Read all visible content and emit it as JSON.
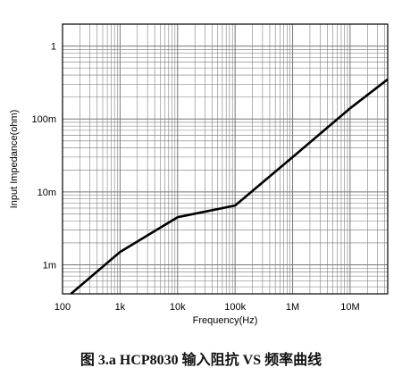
{
  "caption": "图 3.a HCP8030 输入阻抗 VS 频率曲线",
  "chart_data": {
    "type": "line",
    "title": "",
    "xlabel": "Frequency(Hz)",
    "ylabel": "Input Impedance(ohm)",
    "xscale": "log",
    "yscale": "log",
    "xlim": [
      100,
      45000000
    ],
    "ylim": [
      0.0004,
      2
    ],
    "xticks": [
      {
        "value": 100,
        "label": "100"
      },
      {
        "value": 1000,
        "label": "1k"
      },
      {
        "value": 10000,
        "label": "10k"
      },
      {
        "value": 100000,
        "label": "100k"
      },
      {
        "value": 1000000,
        "label": "1M"
      },
      {
        "value": 10000000,
        "label": "10M"
      }
    ],
    "yticks": [
      {
        "value": 0.001,
        "label": "1m"
      },
      {
        "value": 0.01,
        "label": "10m"
      },
      {
        "value": 0.1,
        "label": "100m"
      },
      {
        "value": 1,
        "label": "1"
      }
    ],
    "grid": true,
    "series": [
      {
        "x": [
          140,
          1000,
          10000,
          100000,
          1000000,
          10000000,
          45000000
        ],
        "y": [
          0.0004,
          0.0015,
          0.0045,
          0.0065,
          0.03,
          0.14,
          0.35
        ]
      }
    ],
    "colors": {
      "line": "#000000",
      "grid": "#777777",
      "frame": "#000000"
    }
  }
}
